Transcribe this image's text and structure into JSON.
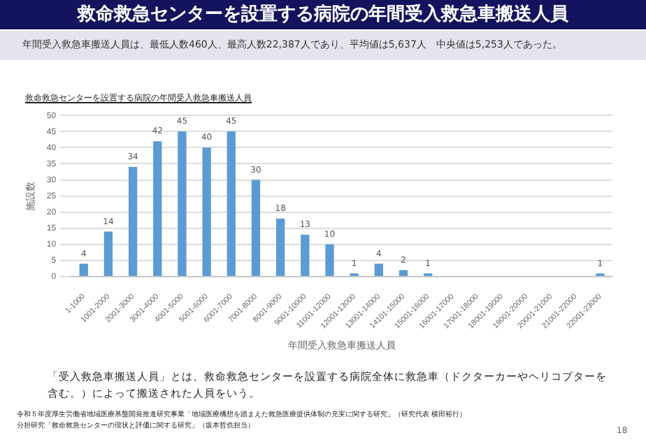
{
  "chart_data": {
    "type": "bar",
    "title": "救命救急センターを設置する病院の年間受入救急車搬送人員",
    "subtitle": "年間受入救急車搬送人員は、最低人数460人、最高人数22,387人であり、平均値は5,637人　中央値は5,253人であった。",
    "categories": [
      "1-1000",
      "1001-2000",
      "2001-3000",
      "3001-4000",
      "4001-5000",
      "5001-6000",
      "6001-7000",
      "7001-8000",
      "8001-9000",
      "9001-10000",
      "11001-12000",
      "12001-13000",
      "13001-14000",
      "14101-15000",
      "15001-16000",
      "16001-17000",
      "17001-18000",
      "18001-19000",
      "19001-20000",
      "20001-21000",
      "21001-22000",
      "22001-23000"
    ],
    "values": [
      4,
      14,
      34,
      42,
      45,
      40,
      45,
      30,
      18,
      13,
      10,
      1,
      4,
      2,
      1,
      null,
      null,
      null,
      null,
      null,
      null,
      1
    ],
    "color": "#5b9bd5",
    "ylim": [
      0,
      50
    ],
    "yticks": [
      0,
      5,
      10,
      15,
      20,
      25,
      30,
      35,
      40,
      45,
      50
    ],
    "grid": "y",
    "data_labels": true,
    "xlabel": "年間受入救急車搬送人員",
    "ylabel": "施設数",
    "annotations": [
      "救命救急センターを設置する病院の年間受入救急車搬送人員",
      "「受入救急車搬送人員」とは、救命救急センターを設置する病院全体に救急車（ドクターカーやヘリコプターを含む。）によって搬送された人員をいう。",
      "令和５年度厚生労働省地域医療基盤開発推進研究事業「地域医療構想を踏まえた救急医療提供体制の充実に関する研究」（研究代表 横田裕行）",
      "分担研究「救命救急センターの現状と評価に関する研究」（坂本哲也担当）",
      "18"
    ]
  }
}
